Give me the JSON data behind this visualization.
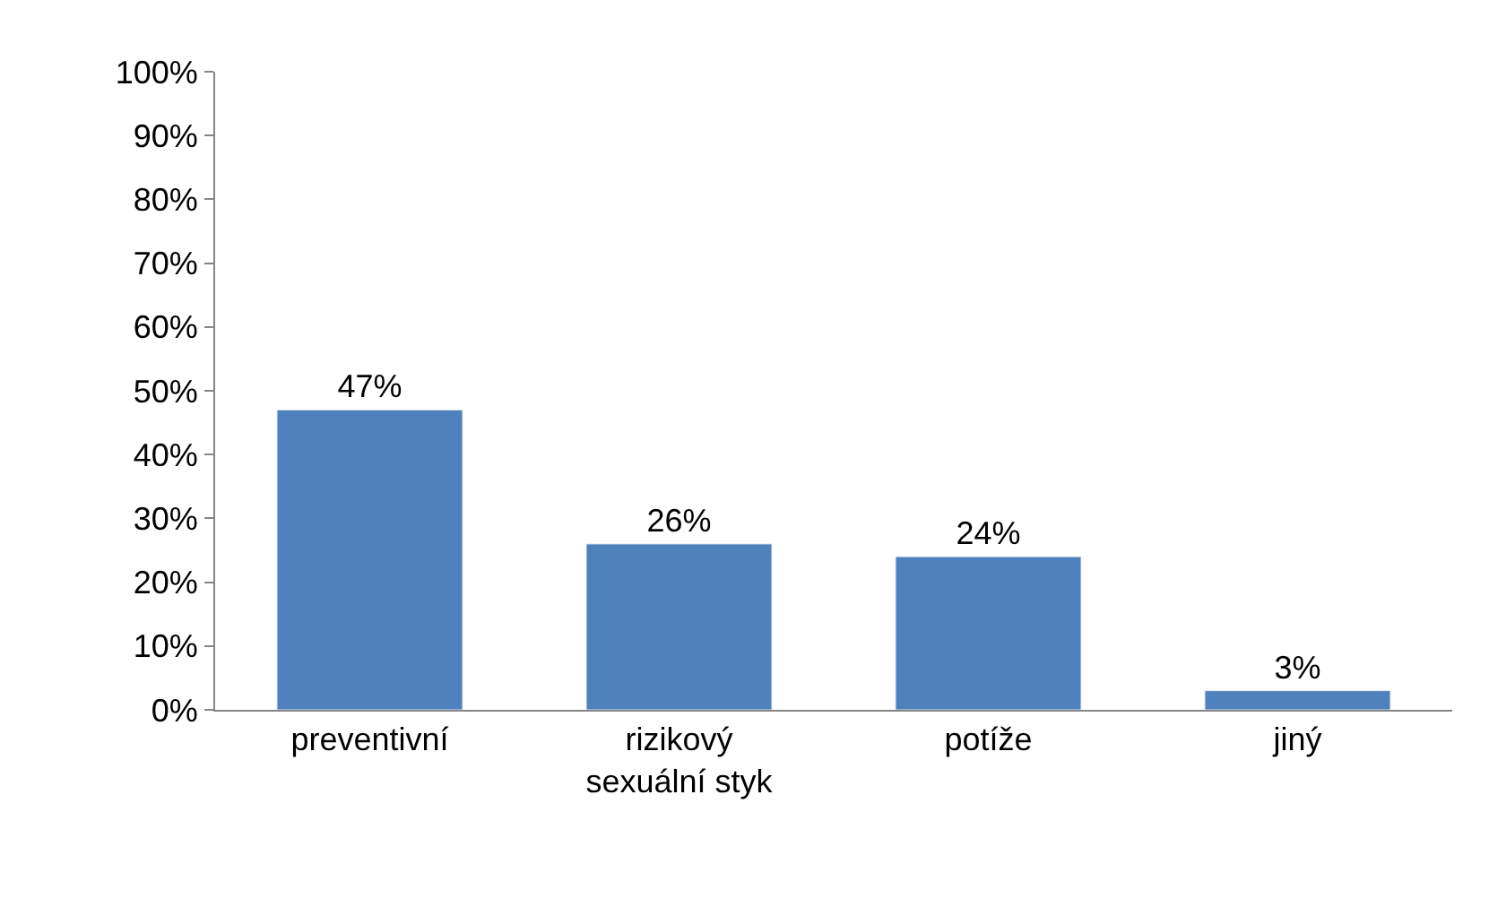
{
  "chart_data": {
    "type": "bar",
    "categories": [
      "preventivní",
      "rizikový\nsexuální styk",
      "potíže",
      "jiný"
    ],
    "values": [
      47,
      26,
      24,
      3
    ],
    "value_labels": [
      "47%",
      "26%",
      "24%",
      "3%"
    ],
    "color": "#4f81bd",
    "ylim": [
      0,
      100
    ],
    "yticks": [
      {
        "value": 0,
        "label": "0%"
      },
      {
        "value": 10,
        "label": "10%"
      },
      {
        "value": 20,
        "label": "20%"
      },
      {
        "value": 30,
        "label": "30%"
      },
      {
        "value": 40,
        "label": "40%"
      },
      {
        "value": 50,
        "label": "50%"
      },
      {
        "value": 60,
        "label": "60%"
      },
      {
        "value": 70,
        "label": "70%"
      },
      {
        "value": 80,
        "label": "80%"
      },
      {
        "value": 90,
        "label": "90%"
      },
      {
        "value": 100,
        "label": "100%"
      }
    ]
  }
}
